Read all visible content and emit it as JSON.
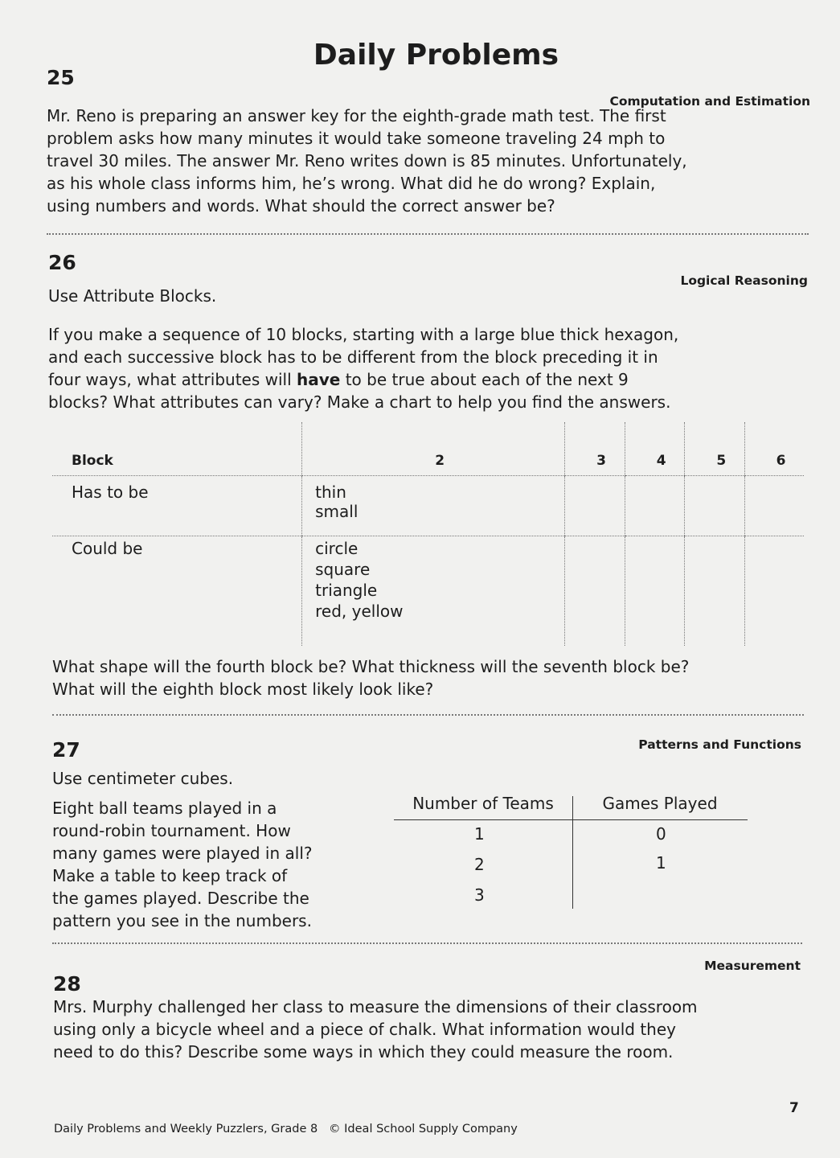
{
  "title": "Daily Problems",
  "problems": {
    "p25": {
      "number": "25",
      "category": "Computation and Estimation",
      "lines": [
        "Mr. Reno is preparing an answer key for the eighth-grade math test. The first",
        "problem asks how many minutes it would take someone traveling 24 mph to",
        "travel 30 miles. The answer Mr. Reno writes down is 85 minutes. Unfortunately,",
        "as his whole class informs him, he’s wrong. What did he do wrong? Explain,",
        "using numbers and words. What should the correct answer be?"
      ]
    },
    "p26": {
      "number": "26",
      "category": "Logical Reasoning",
      "intro": "Use Attribute Blocks.",
      "lines": [
        "If you make a sequence of 10 blocks, starting with a large blue thick hexagon,",
        "and each successive block has to be different from the block preceding it in"
      ],
      "line3_pre": "four ways, what attributes will ",
      "line3_bold": "have",
      "line3_post": " to be true about each of the next 9",
      "line4": "blocks? What attributes can vary? Make a chart to help you find the answers.",
      "table": {
        "headers": [
          "Block",
          "2",
          "3",
          "4",
          "5",
          "6"
        ],
        "rows": [
          {
            "label": "Has to be",
            "values": [
              "thin",
              "small"
            ]
          },
          {
            "label": "Could be",
            "values": [
              "circle",
              "square",
              "triangle",
              "red, yellow"
            ]
          }
        ]
      },
      "questions": [
        "What shape will the fourth block be? What thickness will the seventh block be?",
        "What will the eighth block most likely look like?"
      ]
    },
    "p27": {
      "number": "27",
      "category": "Patterns and Functions",
      "intro": "Use centimeter cubes.",
      "lines": [
        "Eight ball teams played in a",
        "round-robin tournament. How",
        "many games were played in all?",
        "Make a table to keep track of",
        "the games played. Describe the",
        "pattern you see in the numbers."
      ],
      "table": {
        "headers": [
          "Number of Teams",
          "Games Played"
        ],
        "teams": [
          "1",
          "2",
          "3"
        ],
        "games": [
          "0",
          "1"
        ]
      }
    },
    "p28": {
      "number": "28",
      "category": "Measurement",
      "lines": [
        "Mrs. Murphy challenged her class to measure the dimensions of their classroom",
        "using only a bicycle wheel and a piece of chalk. What information would they",
        "need to do this? Describe some ways in which they could measure the room."
      ]
    }
  },
  "footer": {
    "text": "Daily Problems and Weekly Puzzlers, Grade 8",
    "copyright": "© Ideal School Supply Company",
    "page": "7"
  }
}
